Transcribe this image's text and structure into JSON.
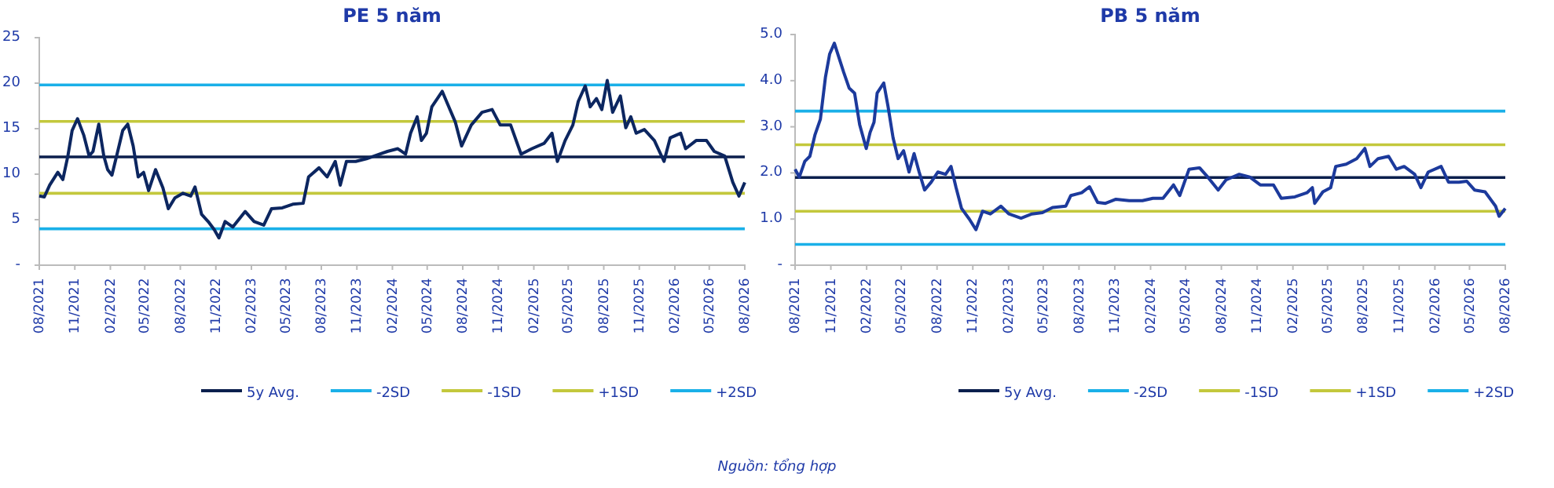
{
  "chart_data": [
    {
      "type": "line",
      "title": "PE 5 năm",
      "legend": "bottom",
      "ylim": [
        0,
        25
      ],
      "yticks": [
        {
          "value": 0,
          "label": "-"
        },
        5,
        10,
        15,
        20,
        25
      ],
      "xlim": [
        "2021-08-01",
        "2026-08-01"
      ],
      "xticks": [
        {
          "value": "2021-08-01",
          "label": "08/2021"
        },
        {
          "value": "2021-11-01",
          "label": "11/2021"
        },
        {
          "value": "2022-02-01",
          "label": "02/2022"
        },
        {
          "value": "2022-05-01",
          "label": "05/2022"
        },
        {
          "value": "2022-08-01",
          "label": "08/2022"
        },
        {
          "value": "2022-11-01",
          "label": "11/2022"
        },
        {
          "value": "2023-02-01",
          "label": "02/2023"
        },
        {
          "value": "2023-05-01",
          "label": "05/2023"
        },
        {
          "value": "2023-08-01",
          "label": "08/2023"
        },
        {
          "value": "2023-11-01",
          "label": "11/2023"
        },
        {
          "value": "2024-02-01",
          "label": "02/2024"
        },
        {
          "value": "2024-05-01",
          "label": "05/2024"
        },
        {
          "value": "2024-08-01",
          "label": "08/2024"
        },
        {
          "value": "2024-11-01",
          "label": "11/2024"
        },
        {
          "value": "2025-02-01",
          "label": "02/2025"
        },
        {
          "value": "2025-05-01",
          "label": "05/2025"
        },
        {
          "value": "2025-08-01",
          "label": "08/2025"
        },
        {
          "value": "2025-11-01",
          "label": "11/2025"
        },
        {
          "value": "2026-02-01",
          "label": "02/2026"
        },
        {
          "value": "2026-05-01",
          "label": "05/2026"
        },
        {
          "value": "2026-08-01",
          "label": "08/2026"
        }
      ],
      "series": [
        {
          "color": "#0c2660",
          "x": [
            "2021-08-01",
            "2021-08-14",
            "2021-08-28",
            "2021-09-18",
            "2021-10-01",
            "2021-10-14",
            "2021-10-25",
            "2021-11-08",
            "2021-11-24",
            "2021-12-08",
            "2021-12-18",
            "2022-01-02",
            "2022-01-15",
            "2022-01-25",
            "2022-02-05",
            "2022-02-20",
            "2022-03-05",
            "2022-03-18",
            "2022-04-01",
            "2022-04-14",
            "2022-04-28",
            "2022-05-11",
            "2022-05-29",
            "2022-06-17",
            "2022-07-01",
            "2022-07-18",
            "2022-08-08",
            "2022-08-28",
            "2022-09-08",
            "2022-09-25",
            "2022-10-12",
            "2022-10-28",
            "2022-11-09",
            "2022-11-25",
            "2022-12-15",
            "2023-01-16",
            "2023-02-08",
            "2023-03-05",
            "2023-03-25",
            "2023-04-22",
            "2023-05-19",
            "2023-06-15",
            "2023-06-29",
            "2023-07-26",
            "2023-08-16",
            "2023-09-06",
            "2023-09-19",
            "2023-10-05",
            "2023-10-29",
            "2023-11-26",
            "2023-12-23",
            "2024-01-19",
            "2024-02-15",
            "2024-03-06",
            "2024-03-19",
            "2024-04-05",
            "2024-04-16",
            "2024-04-29",
            "2024-05-13",
            "2024-06-09",
            "2024-06-23",
            "2024-07-13",
            "2024-07-29",
            "2024-08-23",
            "2024-09-20",
            "2024-10-16",
            "2024-11-06",
            "2024-12-03",
            "2024-12-30",
            "2025-01-27",
            "2025-02-28",
            "2025-03-20",
            "2025-04-03",
            "2025-04-23",
            "2025-05-13",
            "2025-05-27",
            "2025-06-14",
            "2025-06-27",
            "2025-07-13",
            "2025-07-27",
            "2025-08-10",
            "2025-08-24",
            "2025-09-13",
            "2025-09-27",
            "2025-10-10",
            "2025-10-24",
            "2025-11-14",
            "2025-12-10",
            "2026-01-04",
            "2026-01-20",
            "2026-02-16",
            "2026-03-01",
            "2026-03-28",
            "2026-04-24",
            "2026-05-14",
            "2026-06-10",
            "2026-07-01",
            "2026-07-17",
            "2026-08-01"
          ],
          "values": [
            7.6,
            7.5,
            8.8,
            10.2,
            9.4,
            12,
            14.8,
            16.1,
            14.3,
            12,
            12.5,
            15.5,
            12,
            10.5,
            9.9,
            12.5,
            14.8,
            15.5,
            13.1,
            9.7,
            10.2,
            8.2,
            10.5,
            8.5,
            6.2,
            7.4,
            7.9,
            7.6,
            8.6,
            5.6,
            4.8,
            3.9,
            3.0,
            4.8,
            4.2,
            5.9,
            4.8,
            4.4,
            6.2,
            6.3,
            6.7,
            6.8,
            9.7,
            10.7,
            9.7,
            11.4,
            8.8,
            11.4,
            11.4,
            11.7,
            12.1,
            12.5,
            12.8,
            12.2,
            14.5,
            16.3,
            13.7,
            14.5,
            17.4,
            19.1,
            17.7,
            15.7,
            13.1,
            15.4,
            16.8,
            17.1,
            15.4,
            15.4,
            12.2,
            12.8,
            13.4,
            14.5,
            11.4,
            13.7,
            15.4,
            18.0,
            19.7,
            17.4,
            18.3,
            17.1,
            20.3,
            16.8,
            18.6,
            15.1,
            16.3,
            14.5,
            14.9,
            13.7,
            11.4,
            14.0,
            14.5,
            12.8,
            13.7,
            13.7,
            12.5,
            12,
            9.1,
            7.6,
            9.1
          ]
        }
      ],
      "ref_lines": [
        {
          "axis": "y",
          "value": 11.9,
          "label": "5y Avg.",
          "color": "#0b1f4d"
        },
        {
          "axis": "y",
          "value": 4.0,
          "label": "-2SD",
          "color": "#1ab0e8"
        },
        {
          "axis": "y",
          "value": 7.9,
          "label": "-1SD",
          "color": "#c3c83c"
        },
        {
          "axis": "y",
          "value": 15.8,
          "label": "+1SD",
          "color": "#c3c83c"
        },
        {
          "axis": "y",
          "value": 19.8,
          "label": "+2SD",
          "color": "#1ab0e8"
        }
      ],
      "annotations": [
        "Nguồn: tổng hợp"
      ]
    },
    {
      "type": "line",
      "title": "PB 5 năm",
      "legend": "bottom",
      "ylim": [
        0,
        5
      ],
      "yticks": [
        {
          "value": 0,
          "label": "-"
        },
        {
          "value": 1,
          "label": "1.0"
        },
        {
          "value": 2,
          "label": "2.0"
        },
        {
          "value": 3,
          "label": "3.0"
        },
        {
          "value": 4,
          "label": "4.0"
        },
        {
          "value": 5,
          "label": "5.0"
        }
      ],
      "xlim": [
        "2021-08-01",
        "2026-08-01"
      ],
      "xticks": [
        {
          "value": "2021-08-01",
          "label": "08/2021"
        },
        {
          "value": "2021-11-01",
          "label": "11/2021"
        },
        {
          "value": "2022-02-01",
          "label": "02/2022"
        },
        {
          "value": "2022-05-01",
          "label": "05/2022"
        },
        {
          "value": "2022-08-01",
          "label": "08/2022"
        },
        {
          "value": "2022-11-01",
          "label": "11/2022"
        },
        {
          "value": "2023-02-01",
          "label": "02/2023"
        },
        {
          "value": "2023-05-01",
          "label": "05/2023"
        },
        {
          "value": "2023-08-01",
          "label": "08/2023"
        },
        {
          "value": "2023-11-01",
          "label": "11/2023"
        },
        {
          "value": "2024-02-01",
          "label": "02/2024"
        },
        {
          "value": "2024-05-01",
          "label": "05/2024"
        },
        {
          "value": "2024-08-01",
          "label": "08/2024"
        },
        {
          "value": "2024-11-01",
          "label": "11/2024"
        },
        {
          "value": "2025-02-01",
          "label": "02/2025"
        },
        {
          "value": "2025-05-01",
          "label": "05/2025"
        },
        {
          "value": "2025-08-01",
          "label": "08/2025"
        },
        {
          "value": "2025-11-01",
          "label": "11/2025"
        },
        {
          "value": "2026-02-01",
          "label": "02/2026"
        },
        {
          "value": "2026-05-01",
          "label": "05/2026"
        },
        {
          "value": "2026-08-01",
          "label": "08/2026"
        }
      ],
      "series": [
        {
          "color": "#1c3a9c",
          "x": [
            "2021-08-01",
            "2021-08-12",
            "2021-08-26",
            "2021-09-08",
            "2021-09-21",
            "2021-10-05",
            "2021-10-18",
            "2021-10-29",
            "2021-11-10",
            "2021-11-21",
            "2021-12-04",
            "2021-12-18",
            "2022-01-01",
            "2022-01-14",
            "2022-01-31",
            "2022-02-10",
            "2022-02-20",
            "2022-02-28",
            "2022-03-17",
            "2022-03-28",
            "2022-04-10",
            "2022-04-23",
            "2022-05-07",
            "2022-05-21",
            "2022-06-03",
            "2022-06-16",
            "2022-06-30",
            "2022-07-17",
            "2022-08-03",
            "2022-08-23",
            "2022-09-06",
            "2022-09-19",
            "2022-10-03",
            "2022-10-23",
            "2022-11-09",
            "2022-11-26",
            "2022-12-16",
            "2023-01-12",
            "2023-02-02",
            "2023-03-05",
            "2023-04-02",
            "2023-04-29",
            "2023-05-25",
            "2023-06-28",
            "2023-07-11",
            "2023-08-08",
            "2023-08-28",
            "2023-09-18",
            "2023-10-08",
            "2023-11-04",
            "2023-12-08",
            "2024-01-11",
            "2024-02-07",
            "2024-03-04",
            "2024-03-31",
            "2024-04-16",
            "2024-05-10",
            "2024-06-06",
            "2024-06-27",
            "2024-07-24",
            "2024-08-13",
            "2024-09-16",
            "2024-10-13",
            "2024-11-09",
            "2024-12-13",
            "2025-01-02",
            "2025-02-06",
            "2025-03-09",
            "2025-03-23",
            "2025-03-29",
            "2025-04-19",
            "2025-05-09",
            "2025-05-22",
            "2025-06-18",
            "2025-07-15",
            "2025-08-05",
            "2025-08-18",
            "2025-09-08",
            "2025-10-05",
            "2025-10-25",
            "2025-11-14",
            "2025-12-11",
            "2025-12-27",
            "2026-01-15",
            "2026-02-17",
            "2026-03-08",
            "2026-04-04",
            "2026-04-24",
            "2026-05-14",
            "2026-06-10",
            "2026-07-07",
            "2026-07-16",
            "2026-08-01"
          ],
          "values": [
            2.08,
            1.91,
            2.25,
            2.36,
            2.82,
            3.16,
            4.07,
            4.58,
            4.81,
            4.52,
            4.18,
            3.84,
            3.73,
            3.05,
            2.53,
            2.88,
            3.1,
            3.73,
            3.95,
            3.44,
            2.76,
            2.31,
            2.48,
            2.02,
            2.42,
            2.02,
            1.63,
            1.8,
            2.02,
            1.97,
            2.14,
            1.68,
            1.23,
            1.0,
            0.77,
            1.17,
            1.11,
            1.28,
            1.11,
            1.02,
            1.11,
            1.14,
            1.25,
            1.28,
            1.51,
            1.57,
            1.7,
            1.36,
            1.34,
            1.43,
            1.4,
            1.4,
            1.45,
            1.45,
            1.74,
            1.51,
            2.08,
            2.11,
            1.91,
            1.63,
            1.85,
            1.97,
            1.91,
            1.74,
            1.74,
            1.45,
            1.48,
            1.57,
            1.68,
            1.34,
            1.59,
            1.68,
            2.14,
            2.19,
            2.31,
            2.53,
            2.14,
            2.31,
            2.36,
            2.08,
            2.14,
            1.97,
            1.68,
            2.02,
            2.14,
            1.8,
            1.8,
            1.82,
            1.63,
            1.59,
            1.28,
            1.06,
            1.23
          ]
        }
      ],
      "ref_lines": [
        {
          "axis": "y",
          "value": 1.9,
          "label": "5y Avg.",
          "color": "#0b1f4d"
        },
        {
          "axis": "y",
          "value": 0.45,
          "label": "-2SD",
          "color": "#1ab0e8"
        },
        {
          "axis": "y",
          "value": 1.17,
          "label": "-1SD",
          "color": "#c3c83c"
        },
        {
          "axis": "y",
          "value": 2.61,
          "label": "+1SD",
          "color": "#c3c83c"
        },
        {
          "axis": "y",
          "value": 3.34,
          "label": "+2SD",
          "color": "#1ab0e8"
        }
      ]
    }
  ]
}
